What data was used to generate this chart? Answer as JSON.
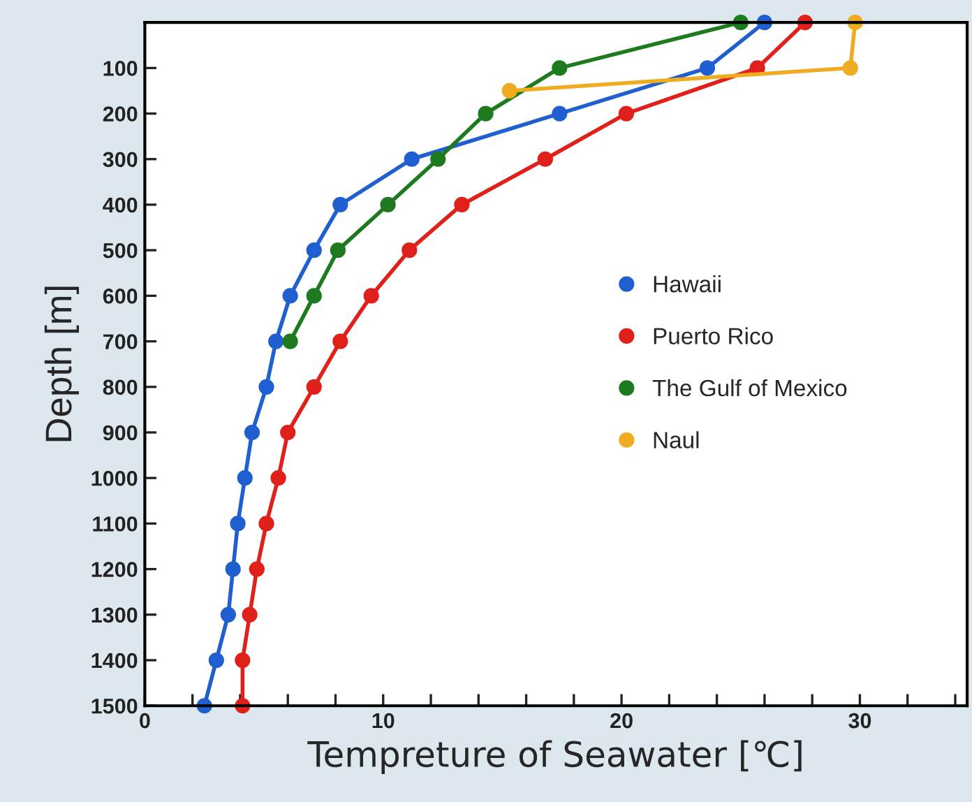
{
  "chart_data": {
    "type": "line",
    "xlabel": "Tempreture of Seawater [℃]",
    "ylabel": "Depth [m]",
    "xlim": [
      0,
      34.5
    ],
    "ylim": [
      1500,
      0
    ],
    "xticks": [
      0,
      {
        "value": 2,
        "label": null
      },
      {
        "value": 4,
        "label": null
      },
      {
        "value": 6,
        "label": null
      },
      {
        "value": 8,
        "label": null
      },
      10,
      {
        "value": 12,
        "label": null
      },
      {
        "value": 14,
        "label": null
      },
      {
        "value": 16,
        "label": null
      },
      {
        "value": 18,
        "label": null
      },
      20,
      {
        "value": 22,
        "label": null
      },
      {
        "value": 24,
        "label": null
      },
      {
        "value": 26,
        "label": null
      },
      {
        "value": 28,
        "label": null
      },
      30,
      {
        "value": 32,
        "label": null
      },
      {
        "value": 34,
        "label": null
      }
    ],
    "yticks": [
      100,
      200,
      300,
      400,
      500,
      600,
      700,
      800,
      900,
      1000,
      1100,
      1200,
      1300,
      1400,
      1500
    ],
    "marker": "circle",
    "line_style": "solid",
    "grid": false,
    "legend": "right",
    "series": [
      {
        "name": "Hawaii",
        "color": "#1f5fcf",
        "x": [
          26.0,
          23.6,
          17.4,
          11.2,
          8.2,
          7.1,
          6.1,
          5.5,
          5.1,
          4.5,
          4.2,
          3.9,
          3.7,
          3.5,
          3.0,
          2.5
        ],
        "values": [
          0,
          100,
          200,
          300,
          400,
          500,
          600,
          700,
          800,
          900,
          1000,
          1100,
          1200,
          1300,
          1400,
          1500
        ]
      },
      {
        "name": "Puerto Rico",
        "color": "#e0201a",
        "x": [
          27.7,
          25.7,
          20.2,
          16.8,
          13.3,
          11.1,
          9.5,
          8.2,
          7.1,
          6.0,
          5.6,
          5.1,
          4.7,
          4.4,
          4.1,
          4.1
        ],
        "values": [
          0,
          100,
          200,
          300,
          400,
          500,
          600,
          700,
          800,
          900,
          1000,
          1100,
          1200,
          1300,
          1400,
          1500
        ]
      },
      {
        "name": "The Gulf of Mexico",
        "color": "#1e7a1e",
        "x": [
          25.0,
          17.4,
          14.3,
          12.3,
          10.2,
          8.1,
          7.1,
          6.1
        ],
        "values": [
          0,
          100,
          200,
          300,
          400,
          500,
          600,
          700
        ]
      },
      {
        "name": "Naul",
        "color": "#f0ac20",
        "x": [
          29.8,
          29.6,
          15.3
        ],
        "values": [
          0,
          100,
          150
        ]
      }
    ]
  }
}
